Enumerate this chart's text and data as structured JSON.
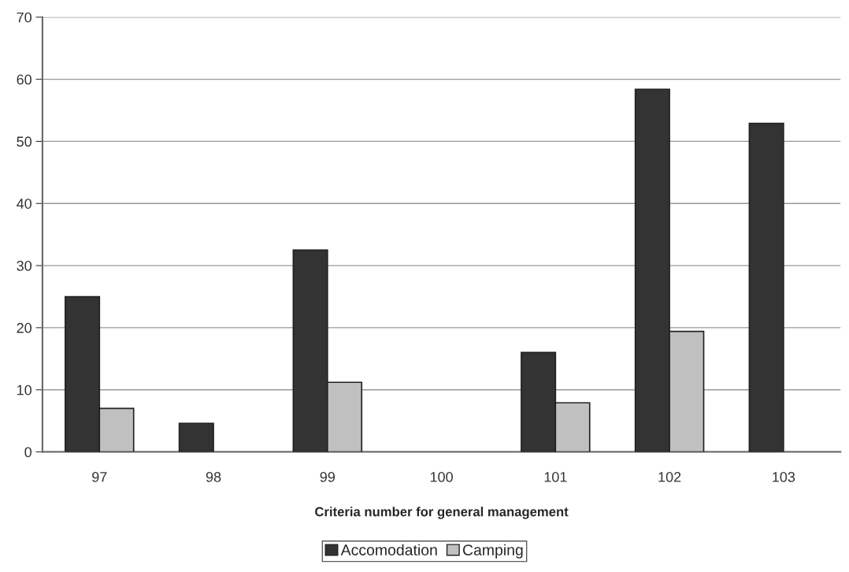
{
  "chart_data": {
    "type": "bar",
    "xlabel": "Criteria number for general management",
    "categories": [
      "97",
      "98",
      "99",
      "100",
      "101",
      "102",
      "103"
    ],
    "series": [
      {
        "name": "Accomodation",
        "color": "#333333",
        "values": [
          25.0,
          4.6,
          32.5,
          null,
          16.0,
          58.4,
          52.9
        ]
      },
      {
        "name": "Camping",
        "color": "#c0c0c0",
        "values": [
          7.0,
          null,
          11.2,
          null,
          7.9,
          19.4,
          null
        ]
      }
    ],
    "ylim": [
      0,
      70
    ],
    "yticks": [
      0,
      10,
      20,
      30,
      40,
      50,
      60,
      70
    ],
    "grid": "y",
    "legend": "bottom"
  }
}
